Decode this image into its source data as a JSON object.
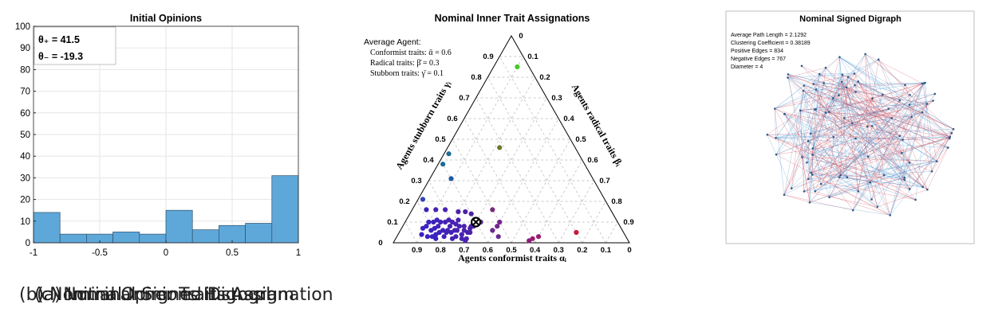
{
  "colors": {
    "bar": "#5ea8d9",
    "bar_edge": "#2c4f6b",
    "edge_pos": "#3f8fd0",
    "edge_neg": "#d0424f",
    "avg_agent": "#000000"
  },
  "panel_a": {
    "caption": "(a) Initial Opinions Histogram",
    "theta_plus_label": "θ₊ = 41.5",
    "theta_minus_label": "θ₋ = -19.3"
  },
  "panel_b": {
    "caption": "(b) Nominal Inner Traits Assignation",
    "legend_title": "Average Agent:",
    "legend_lines": [
      "Conformist traits: ᾱ = 0.6",
      "Radical traits: β̄ = 0.3",
      "Stubborn traits: γ̄ = 0.1"
    ]
  },
  "panel_c": {
    "caption": "(c) Nominal Signed Digraph",
    "title": "Nominal Signed Digraph",
    "stats": [
      "Average Path Length = 2.1292",
      "Clustering Coefficient = 0.38189",
      "Positive Edges = 834",
      "Negative Edges = 767",
      "Diameter = 4"
    ]
  },
  "chart_data": [
    {
      "type": "bar",
      "title": "Initial Opinions",
      "bin_edges": [
        -1,
        -0.8,
        -0.6,
        -0.4,
        -0.2,
        0,
        0.2,
        0.4,
        0.6,
        0.8,
        1
      ],
      "values": [
        14,
        4,
        4,
        5,
        4,
        15,
        6,
        8,
        9,
        31
      ],
      "xlim": [
        -1,
        1
      ],
      "ylim": [
        0,
        100
      ],
      "xticks": [
        "-1",
        "-0.5",
        "0",
        "0.5",
        "1"
      ],
      "xtick_values": [
        -1,
        -0.5,
        0,
        0.5,
        1
      ],
      "yticks": [
        "0",
        "10",
        "20",
        "30",
        "40",
        "50",
        "60",
        "70",
        "80",
        "90",
        "100"
      ],
      "ytick_values": [
        0,
        10,
        20,
        30,
        40,
        50,
        60,
        70,
        80,
        90,
        100
      ],
      "grid": true
    },
    {
      "type": "scatter",
      "subtype": "ternary",
      "title": "Nominal Inner Trait Assignations",
      "axis_labels": {
        "conformist": "Agents conformist traits αᵢ",
        "radical": "Agents radical traits βᵢ",
        "stubborn": "Agents stubborn traits γᵢ"
      },
      "tick_labels": [
        "0",
        "0.1",
        "0.2",
        "0.3",
        "0.4",
        "0.5",
        "0.6",
        "0.7",
        "0.8",
        "0.9"
      ],
      "average_agent": {
        "a": 0.6,
        "b": 0.3,
        "c": 0.1
      },
      "points": [
        {
          "a": 0.05,
          "b": 0.1,
          "c": 0.85,
          "color": "#44cc2a"
        },
        {
          "a": 0.32,
          "b": 0.22,
          "c": 0.46,
          "color": "#6b7a2a"
        },
        {
          "a": 0.55,
          "b": 0.02,
          "c": 0.43,
          "color": "#1d6d95"
        },
        {
          "a": 0.6,
          "b": 0.02,
          "c": 0.38,
          "color": "#1d6d95"
        },
        {
          "a": 0.6,
          "b": 0.09,
          "c": 0.31,
          "color": "#1d5aa0"
        },
        {
          "a": 0.77,
          "b": 0.02,
          "c": 0.21,
          "color": "#3344b8"
        },
        {
          "a": 0.5,
          "b": 0.34,
          "c": 0.16,
          "color": "#7a2a7a"
        },
        {
          "a": 0.2,
          "b": 0.75,
          "c": 0.05,
          "color": "#c8183a"
        },
        {
          "a": 0.37,
          "b": 0.6,
          "c": 0.03,
          "color": "#9a1c6e"
        },
        {
          "a": 0.4,
          "b": 0.58,
          "c": 0.02,
          "color": "#9a1c6e"
        },
        {
          "a": 0.42,
          "b": 0.57,
          "c": 0.01,
          "color": "#8a1c78"
        },
        {
          "a": 0.5,
          "b": 0.4,
          "c": 0.1,
          "color": "#72268a"
        },
        {
          "a": 0.52,
          "b": 0.4,
          "c": 0.08,
          "color": "#72268a"
        },
        {
          "a": 0.55,
          "b": 0.39,
          "c": 0.06,
          "color": "#6a2a90"
        },
        {
          "a": 0.54,
          "b": 0.43,
          "c": 0.03,
          "color": "#6a2a90"
        },
        {
          "a": 0.6,
          "b": 0.26,
          "c": 0.14,
          "color": "#5022a8"
        },
        {
          "a": 0.62,
          "b": 0.3,
          "c": 0.08,
          "color": "#5022a8"
        },
        {
          "a": 0.63,
          "b": 0.29,
          "c": 0.08,
          "color": "#5022a8"
        },
        {
          "a": 0.64,
          "b": 0.29,
          "c": 0.07,
          "color": "#4c22ac"
        },
        {
          "a": 0.65,
          "b": 0.3,
          "c": 0.05,
          "color": "#4c22ac"
        },
        {
          "a": 0.66,
          "b": 0.26,
          "c": 0.08,
          "color": "#4c22ac"
        },
        {
          "a": 0.66,
          "b": 0.29,
          "c": 0.05,
          "color": "#4c22ac"
        },
        {
          "a": 0.67,
          "b": 0.22,
          "c": 0.11,
          "color": "#4a22b0"
        },
        {
          "a": 0.67,
          "b": 0.27,
          "c": 0.06,
          "color": "#4a22b0"
        },
        {
          "a": 0.68,
          "b": 0.24,
          "c": 0.08,
          "color": "#4a22b0"
        },
        {
          "a": 0.68,
          "b": 0.3,
          "c": 0.02,
          "color": "#4a22b0"
        },
        {
          "a": 0.69,
          "b": 0.22,
          "c": 0.09,
          "color": "#4822b2"
        },
        {
          "a": 0.69,
          "b": 0.27,
          "c": 0.04,
          "color": "#4822b2"
        },
        {
          "a": 0.7,
          "b": 0.2,
          "c": 0.1,
          "color": "#4822b2"
        },
        {
          "a": 0.7,
          "b": 0.24,
          "c": 0.06,
          "color": "#4822b2"
        },
        {
          "a": 0.7,
          "b": 0.28,
          "c": 0.02,
          "color": "#4822b2"
        },
        {
          "a": 0.71,
          "b": 0.18,
          "c": 0.11,
          "color": "#4622b4"
        },
        {
          "a": 0.71,
          "b": 0.23,
          "c": 0.06,
          "color": "#4622b4"
        },
        {
          "a": 0.72,
          "b": 0.2,
          "c": 0.08,
          "color": "#4622b4"
        },
        {
          "a": 0.72,
          "b": 0.25,
          "c": 0.03,
          "color": "#4622b4"
        },
        {
          "a": 0.73,
          "b": 0.17,
          "c": 0.1,
          "color": "#4422b6"
        },
        {
          "a": 0.73,
          "b": 0.22,
          "c": 0.05,
          "color": "#4422b6"
        },
        {
          "a": 0.74,
          "b": 0.2,
          "c": 0.06,
          "color": "#4422b6"
        },
        {
          "a": 0.74,
          "b": 0.24,
          "c": 0.02,
          "color": "#4422b6"
        },
        {
          "a": 0.75,
          "b": 0.15,
          "c": 0.1,
          "color": "#4222b8"
        },
        {
          "a": 0.75,
          "b": 0.2,
          "c": 0.05,
          "color": "#4222b8"
        },
        {
          "a": 0.76,
          "b": 0.13,
          "c": 0.11,
          "color": "#4022ba"
        },
        {
          "a": 0.76,
          "b": 0.18,
          "c": 0.06,
          "color": "#4022ba"
        },
        {
          "a": 0.77,
          "b": 0.15,
          "c": 0.08,
          "color": "#4022ba"
        },
        {
          "a": 0.77,
          "b": 0.2,
          "c": 0.03,
          "color": "#4022ba"
        },
        {
          "a": 0.78,
          "b": 0.12,
          "c": 0.1,
          "color": "#3e22bc"
        },
        {
          "a": 0.78,
          "b": 0.17,
          "c": 0.05,
          "color": "#3e22bc"
        },
        {
          "a": 0.79,
          "b": 0.14,
          "c": 0.07,
          "color": "#3e22bc"
        },
        {
          "a": 0.8,
          "b": 0.1,
          "c": 0.1,
          "color": "#3c22be"
        },
        {
          "a": 0.8,
          "b": 0.16,
          "c": 0.04,
          "color": "#3c22be"
        },
        {
          "a": 0.81,
          "b": 0.13,
          "c": 0.06,
          "color": "#3c22be"
        },
        {
          "a": 0.82,
          "b": 0.1,
          "c": 0.08,
          "color": "#3a22c0"
        },
        {
          "a": 0.82,
          "b": 0.15,
          "c": 0.03,
          "color": "#3a22c0"
        },
        {
          "a": 0.84,
          "b": 0.09,
          "c": 0.07,
          "color": "#3a22c0"
        },
        {
          "a": 0.84,
          "b": 0.13,
          "c": 0.03,
          "color": "#3a22c0"
        },
        {
          "a": 0.86,
          "b": 0.1,
          "c": 0.04,
          "color": "#3822c2"
        },
        {
          "a": 0.74,
          "b": 0.1,
          "c": 0.16,
          "color": "#4622b4"
        },
        {
          "a": 0.7,
          "b": 0.14,
          "c": 0.16,
          "color": "#4822b2"
        },
        {
          "a": 0.65,
          "b": 0.2,
          "c": 0.15,
          "color": "#4c22ac"
        },
        {
          "a": 0.78,
          "b": 0.06,
          "c": 0.16,
          "color": "#3e22bc"
        },
        {
          "a": 0.58,
          "b": 0.32,
          "c": 0.1,
          "color": "#5622a4"
        },
        {
          "a": 0.62,
          "b": 0.23,
          "c": 0.15,
          "color": "#5022a8"
        },
        {
          "a": 0.69,
          "b": 0.3,
          "c": 0.01,
          "color": "#4822b2"
        },
        {
          "a": 0.81,
          "b": 0.17,
          "c": 0.02,
          "color": "#3c22be"
        }
      ]
    }
  ]
}
